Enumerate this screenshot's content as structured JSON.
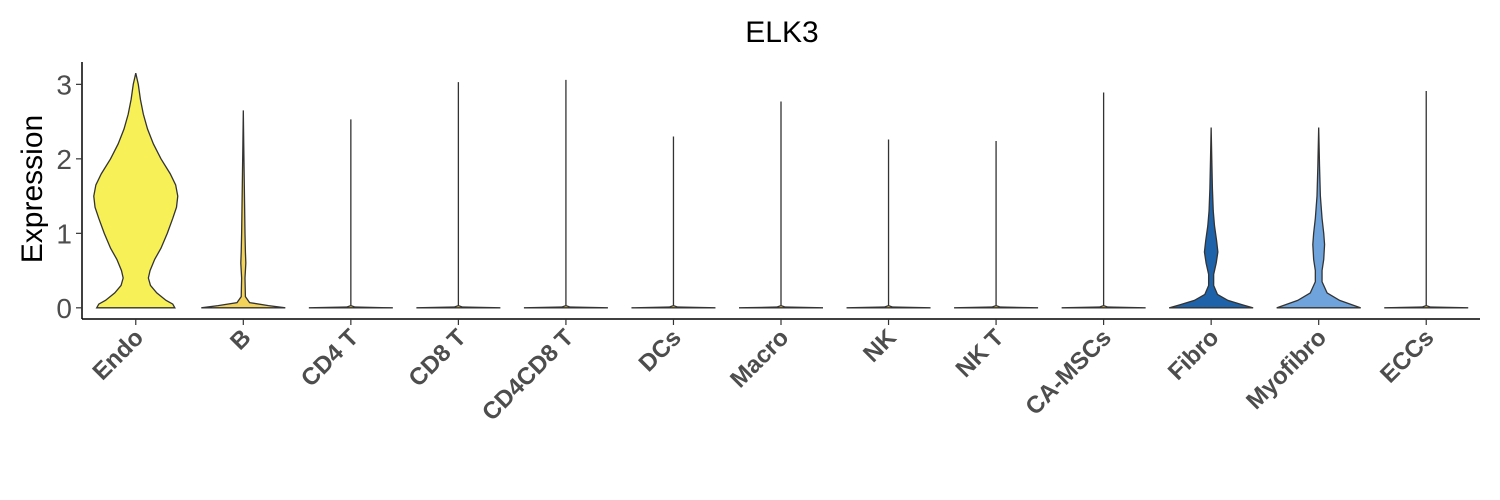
{
  "chart_data": {
    "type": "violin",
    "title": "ELK3",
    "ylabel": "Expression",
    "xlabel": "",
    "ylim": [
      -0.15,
      3.3
    ],
    "yticks": [
      0,
      1,
      2,
      3
    ],
    "grid": false,
    "legend": "none",
    "categories": [
      "Endo",
      "B",
      "CD4 T",
      "CD8 T",
      "CD4CD8 T",
      "DCs",
      "Macro",
      "NK",
      "NK T",
      "CA-MSCs",
      "Fibro",
      "Myofibro",
      "ECCs"
    ],
    "series": [
      {
        "category": "Endo",
        "max": 3.15,
        "color": "#F7F057",
        "profile": [
          [
            0.0,
            0.93
          ],
          [
            0.05,
            0.88
          ],
          [
            0.1,
            0.72
          ],
          [
            0.2,
            0.5
          ],
          [
            0.3,
            0.35
          ],
          [
            0.4,
            0.3
          ],
          [
            0.5,
            0.34
          ],
          [
            0.65,
            0.45
          ],
          [
            0.8,
            0.6
          ],
          [
            1.0,
            0.75
          ],
          [
            1.2,
            0.88
          ],
          [
            1.35,
            0.97
          ],
          [
            1.5,
            1.0
          ],
          [
            1.65,
            0.95
          ],
          [
            1.8,
            0.82
          ],
          [
            2.0,
            0.6
          ],
          [
            2.2,
            0.42
          ],
          [
            2.4,
            0.28
          ],
          [
            2.6,
            0.18
          ],
          [
            2.8,
            0.11
          ],
          [
            3.0,
            0.06
          ],
          [
            3.15,
            0.0
          ]
        ]
      },
      {
        "category": "B",
        "max": 2.65,
        "color": "#F3D35A",
        "profile": [
          [
            0.0,
            1.0
          ],
          [
            0.03,
            0.6
          ],
          [
            0.07,
            0.15
          ],
          [
            0.15,
            0.05
          ],
          [
            0.4,
            0.04
          ],
          [
            0.6,
            0.06
          ],
          [
            0.75,
            0.05
          ],
          [
            1.0,
            0.04
          ],
          [
            1.4,
            0.03
          ],
          [
            1.8,
            0.02
          ],
          [
            2.2,
            0.01
          ],
          [
            2.65,
            0.0
          ]
        ]
      },
      {
        "category": "CD4 T",
        "max": 2.53,
        "color": "#F3D35A",
        "profile": [
          [
            0.0,
            1.0
          ],
          [
            0.01,
            0.1
          ],
          [
            0.03,
            0.0
          ],
          [
            2.53,
            0.0
          ]
        ]
      },
      {
        "category": "CD8 T",
        "max": 3.03,
        "color": "#F3D35A",
        "profile": [
          [
            0.0,
            1.0
          ],
          [
            0.01,
            0.1
          ],
          [
            0.03,
            0.0
          ],
          [
            3.03,
            0.0
          ]
        ]
      },
      {
        "category": "CD4CD8 T",
        "max": 3.06,
        "color": "#F3D35A",
        "profile": [
          [
            0.0,
            1.0
          ],
          [
            0.01,
            0.1
          ],
          [
            0.03,
            0.0
          ],
          [
            3.06,
            0.0
          ]
        ]
      },
      {
        "category": "DCs",
        "max": 2.3,
        "color": "#F3D35A",
        "profile": [
          [
            0.0,
            1.0
          ],
          [
            0.01,
            0.1
          ],
          [
            0.03,
            0.0
          ],
          [
            2.3,
            0.0
          ]
        ]
      },
      {
        "category": "Macro",
        "max": 2.77,
        "color": "#F3D35A",
        "profile": [
          [
            0.0,
            1.0
          ],
          [
            0.01,
            0.1
          ],
          [
            0.03,
            0.0
          ],
          [
            2.77,
            0.0
          ]
        ]
      },
      {
        "category": "NK",
        "max": 2.26,
        "color": "#F3D35A",
        "profile": [
          [
            0.0,
            1.0
          ],
          [
            0.01,
            0.1
          ],
          [
            0.03,
            0.0
          ],
          [
            2.26,
            0.0
          ]
        ]
      },
      {
        "category": "NK T",
        "max": 2.24,
        "color": "#F3D35A",
        "profile": [
          [
            0.0,
            1.0
          ],
          [
            0.01,
            0.1
          ],
          [
            0.03,
            0.0
          ],
          [
            2.24,
            0.0
          ]
        ]
      },
      {
        "category": "CA-MSCs",
        "max": 2.89,
        "color": "#F3D35A",
        "profile": [
          [
            0.0,
            1.0
          ],
          [
            0.01,
            0.1
          ],
          [
            0.03,
            0.0
          ],
          [
            2.89,
            0.0
          ]
        ]
      },
      {
        "category": "Fibro",
        "max": 2.42,
        "color": "#1E63AA",
        "profile": [
          [
            0.0,
            1.0
          ],
          [
            0.04,
            0.75
          ],
          [
            0.1,
            0.4
          ],
          [
            0.18,
            0.15
          ],
          [
            0.3,
            0.06
          ],
          [
            0.45,
            0.06
          ],
          [
            0.6,
            0.12
          ],
          [
            0.75,
            0.16
          ],
          [
            0.9,
            0.13
          ],
          [
            1.1,
            0.08
          ],
          [
            1.3,
            0.05
          ],
          [
            1.6,
            0.03
          ],
          [
            2.0,
            0.015
          ],
          [
            2.42,
            0.0
          ]
        ]
      },
      {
        "category": "Myofibro",
        "max": 2.42,
        "color": "#6FA3DC",
        "profile": [
          [
            0.0,
            1.0
          ],
          [
            0.04,
            0.8
          ],
          [
            0.1,
            0.5
          ],
          [
            0.2,
            0.2
          ],
          [
            0.35,
            0.08
          ],
          [
            0.5,
            0.08
          ],
          [
            0.65,
            0.12
          ],
          [
            0.85,
            0.14
          ],
          [
            1.0,
            0.12
          ],
          [
            1.2,
            0.08
          ],
          [
            1.5,
            0.04
          ],
          [
            1.9,
            0.02
          ],
          [
            2.42,
            0.0
          ]
        ]
      },
      {
        "category": "ECCs",
        "max": 2.91,
        "color": "#F3D35A",
        "profile": [
          [
            0.0,
            1.0
          ],
          [
            0.01,
            0.1
          ],
          [
            0.03,
            0.0
          ],
          [
            2.91,
            0.0
          ]
        ]
      }
    ]
  }
}
